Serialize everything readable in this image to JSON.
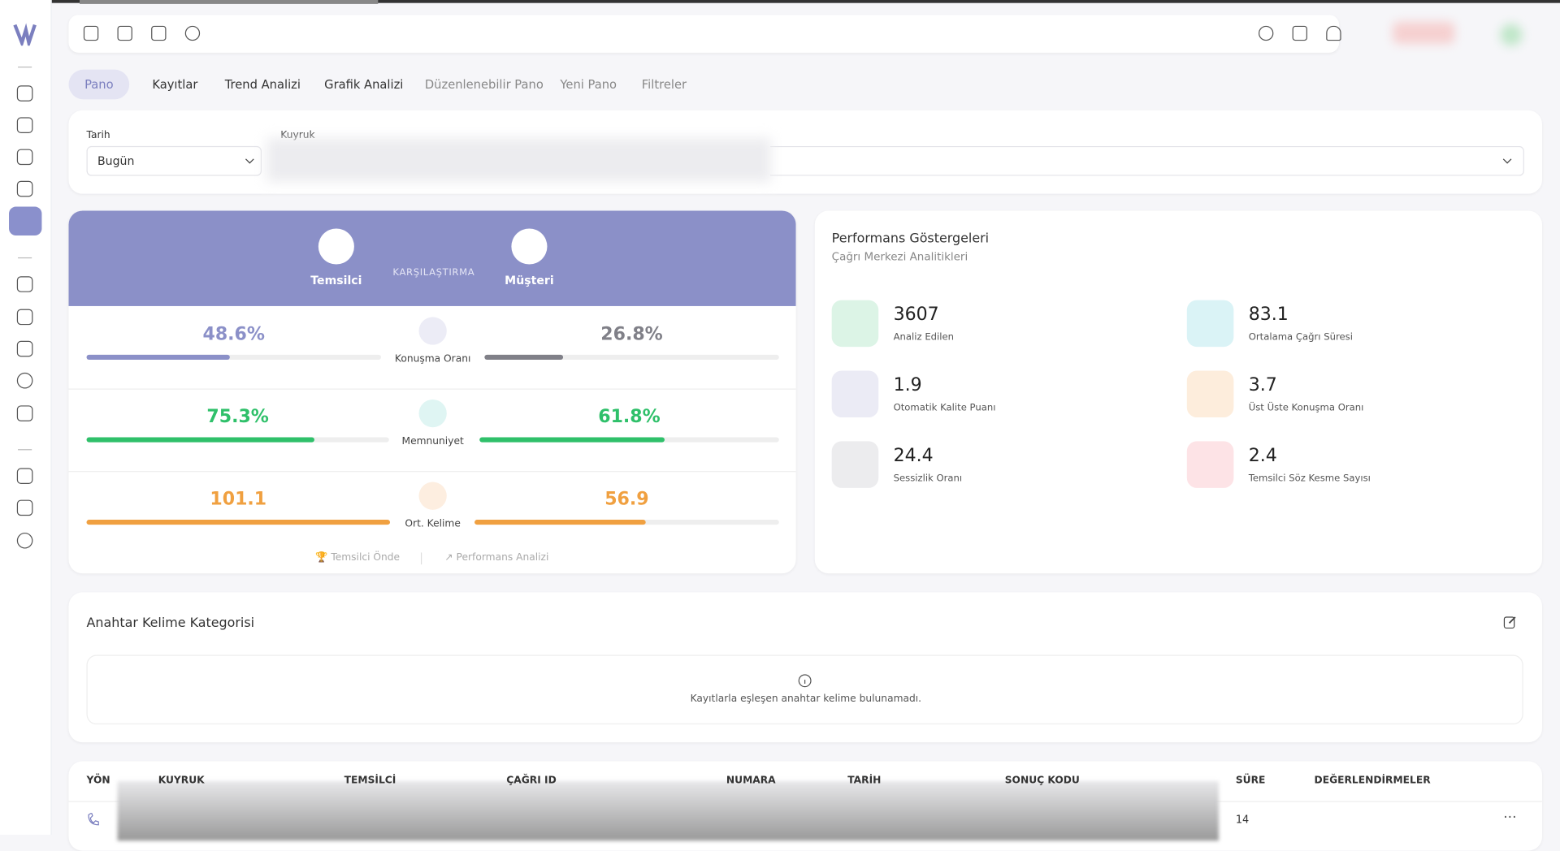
{
  "tabs": [
    "Pano",
    "Kayıtlar",
    "Trend Analizi",
    "Grafik Analizi",
    "Düzenlenebilir Pano",
    "Yeni Pano",
    "Filtreler"
  ],
  "filters": {
    "date_label": "Tarih",
    "date_value": "Bugün",
    "queue_label": "Kuyruk"
  },
  "comparison": {
    "agent_title": "Temsilci",
    "compare_label": "KARŞILAŞTIRMA",
    "customer_title": "Müşteri",
    "metrics": [
      {
        "name": "Konuşma Oranı",
        "agent": 48.6,
        "agent_label": "48.6%",
        "customer": 26.8,
        "customer_label": "26.8%"
      },
      {
        "name": "Memnuniyet",
        "agent": 75.3,
        "agent_label": "75.3%",
        "customer": 61.8,
        "customer_label": "61.8%"
      },
      {
        "name": "Ort. Kelime",
        "agent": 101.1,
        "customer": 56.9
      }
    ],
    "footer_left": "Temsilci Önde",
    "footer_right": "Performans Analizi"
  },
  "performance": {
    "title": "Performans Göstergeleri",
    "subtitle": "Çağrı Merkezi Analitikleri",
    "items": [
      {
        "value": 3607,
        "label": "Analiz Edilen"
      },
      {
        "value": 83.1,
        "label": "Ortalama Çağrı Süresi"
      },
      {
        "value": 1.9,
        "label": "Otomatik Kalite Puanı"
      },
      {
        "value": 3.7,
        "label": "Üst Üste Konuşma Oranı"
      },
      {
        "value": 24.4,
        "label": "Sessizlik Oranı"
      },
      {
        "value": 2.4,
        "label": "Temsilci Söz Kesme Sayısı"
      }
    ]
  },
  "keywords": {
    "title": "Anahtar Kelime Kategorisi",
    "empty_message": "Kayıtlarla eşleşen anahtar kelime bulunamadı."
  },
  "table": {
    "headers": [
      "YÖN",
      "KUYRUK",
      "TEMSİLCİ",
      "ÇAĞRI ID",
      "NUMARA",
      "TARİH",
      "SONUÇ KODU",
      "SÜRE",
      "DEĞERLENDİRMELER"
    ],
    "rows": [
      {
        "duration": 14
      }
    ]
  }
}
